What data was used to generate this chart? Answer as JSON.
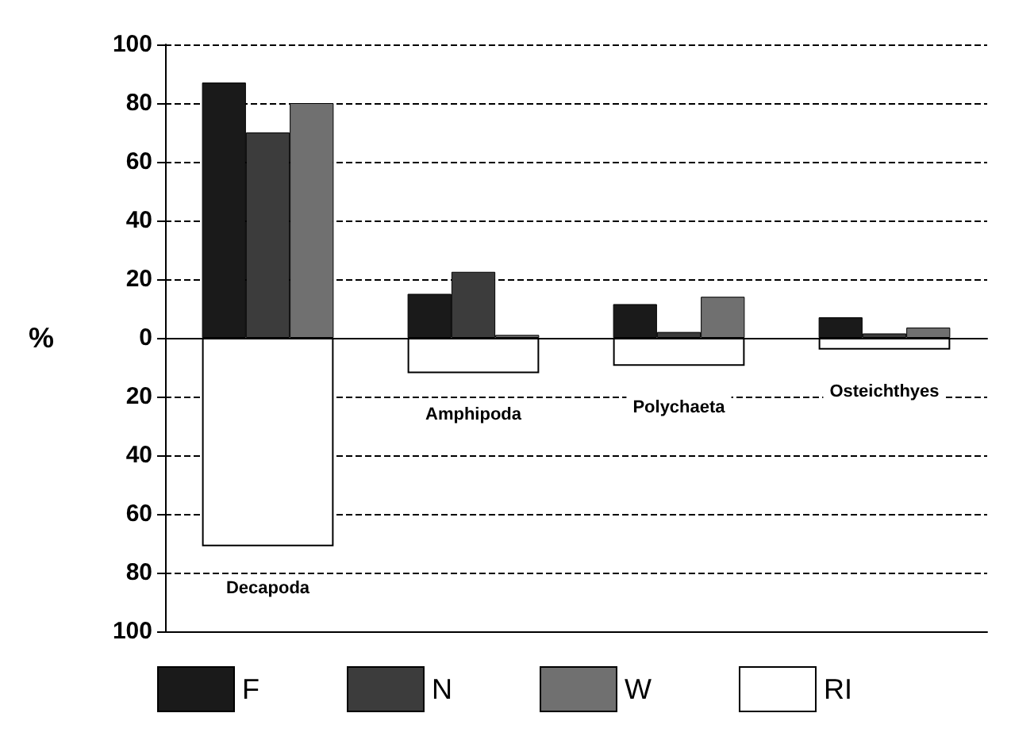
{
  "chart_data": {
    "type": "bar",
    "ylabel": "%",
    "categories": [
      "Decapoda",
      "Amphipoda",
      "Polychaeta",
      "Osteichthyes"
    ],
    "series": [
      {
        "name": "F",
        "color": "#1a1a1a",
        "values": [
          87,
          15,
          11.5,
          7
        ]
      },
      {
        "name": "N",
        "color": "#3c3c3c",
        "values": [
          70,
          22.5,
          2,
          1.5
        ]
      },
      {
        "name": "W",
        "color": "#707070",
        "values": [
          80,
          1,
          14,
          3.5
        ]
      },
      {
        "name": "RI",
        "color": "#ffffff",
        "values": [
          -71,
          -12,
          -9.5,
          -4
        ]
      }
    ],
    "ylim": [
      -100,
      100
    ],
    "yticks": [
      {
        "value": -100,
        "label": "100"
      },
      {
        "value": -80,
        "label": "80"
      },
      {
        "value": -60,
        "label": "60"
      },
      {
        "value": -40,
        "label": "40"
      },
      {
        "value": -20,
        "label": "20"
      },
      0,
      20,
      40,
      60,
      80,
      100
    ],
    "grid": "y",
    "legend": "bottom"
  }
}
